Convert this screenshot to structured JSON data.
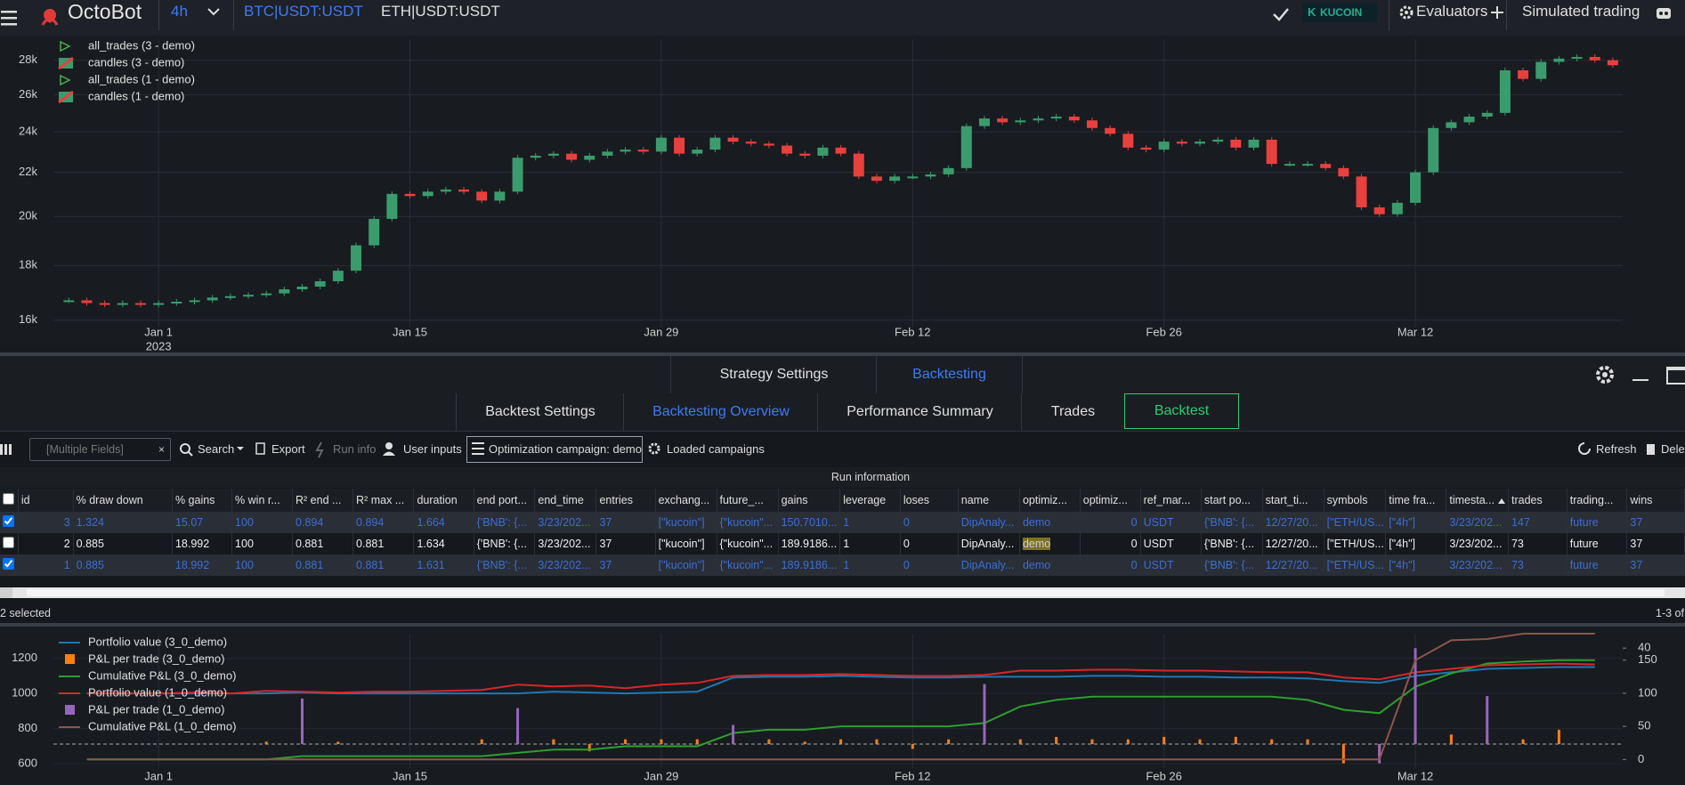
{
  "nav": {
    "logo": "OctoBot",
    "timeframe": "4h",
    "symbols": [
      "BTC|USDT:USDT",
      "ETH|USDT:USDT"
    ],
    "exchange": "KUCOIN",
    "evaluators": "Evaluators",
    "mode": "Simulated trading"
  },
  "panel": {
    "tabs_top": [
      "Strategy Settings",
      "Backtesting"
    ],
    "tabs": [
      "Backtest Settings",
      "Backtesting Overview",
      "Performance Summary",
      "Trades",
      "Backtest"
    ]
  },
  "toolbar": {
    "filter_placeholder": "[Multiple Fields]",
    "buttons": [
      "Search",
      "Export",
      "Run info",
      "User inputs",
      "Optimization campaign: demo",
      "Loaded campaigns"
    ],
    "refresh": "Refresh",
    "delete": "Dele"
  },
  "table": {
    "group_header": "Run information",
    "columns": [
      "id",
      "% draw down",
      "% gains",
      "% win r...",
      "R² end ...",
      "R² max ...",
      "duration",
      "end port...",
      "end_time",
      "entries",
      "exchang...",
      "future_...",
      "gains",
      "leverage",
      "loses",
      "name",
      "optimiz...",
      "optimiz...",
      "ref_mar...",
      "start po...",
      "start_ti...",
      "symbols",
      "time fra...",
      "timesta...",
      "trades",
      "trading...",
      "wins"
    ],
    "sort_column": 23,
    "rows": [
      [
        "3",
        "1.324",
        "15.07",
        "100",
        "0.894",
        "0.894",
        "1.664",
        "{'BNB': {...",
        "3/23/202...",
        "37",
        "[\"kucoin\"]",
        "{\"kucoin\"...",
        "150.7010...",
        "1",
        "0",
        "DipAnaly...",
        "demo",
        "0",
        "USDT",
        "{'BNB': {...",
        "12/27/20...",
        "[\"ETH/US...",
        "[\"4h\"]",
        "3/23/202...",
        "147",
        "future",
        "37"
      ],
      [
        "2",
        "0.885",
        "18.992",
        "100",
        "0.881",
        "0.881",
        "1.634",
        "{'BNB': {...",
        "3/23/202...",
        "37",
        "[\"kucoin\"]",
        "{\"kucoin\"...",
        "189.9186...",
        "1",
        "0",
        "DipAnaly...",
        "demo",
        "0",
        "USDT",
        "{'BNB': {...",
        "12/27/20...",
        "[\"ETH/US...",
        "[\"4h\"]",
        "3/23/202...",
        "73",
        "future",
        "37"
      ],
      [
        "1",
        "0.885",
        "18.992",
        "100",
        "0.881",
        "0.881",
        "1.631",
        "{'BNB': {...",
        "3/23/202...",
        "37",
        "[\"kucoin\"]",
        "{\"kucoin\"...",
        "189.9186...",
        "1",
        "0",
        "DipAnaly...",
        "demo",
        "0",
        "USDT",
        "{'BNB': {...",
        "12/27/20...",
        "[\"ETH/US...",
        "[\"4h\"]",
        "3/23/202...",
        "73",
        "future",
        "37"
      ]
    ],
    "selected": [
      true,
      false,
      true
    ],
    "highlight_cell": [
      1,
      16
    ]
  },
  "footer": {
    "selection": "2 selected",
    "range": "1-3 of"
  },
  "chart_data": [
    {
      "type": "candlestick",
      "log_scale": true,
      "grid": true,
      "legend": [
        {
          "name": "all_trades (3 - demo)",
          "marker": "triangle"
        },
        {
          "name": "candles (3 - demo)",
          "marker": "candle"
        },
        {
          "name": "all_trades (1 - demo)",
          "marker": "triangle"
        },
        {
          "name": "candles (1 - demo)",
          "marker": "candle"
        }
      ],
      "up_color": "#3a9c6c",
      "down_color": "#e8403d",
      "categories": [
        null,
        null,
        null,
        null,
        null,
        "Jan 1",
        null,
        null,
        null,
        null,
        null,
        null,
        null,
        null,
        null,
        null,
        null,
        null,
        null,
        "Jan 15",
        null,
        null,
        null,
        null,
        null,
        null,
        null,
        null,
        null,
        null,
        null,
        null,
        null,
        "Jan 29",
        null,
        null,
        null,
        null,
        null,
        null,
        null,
        null,
        null,
        null,
        null,
        null,
        null,
        "Feb 12",
        null,
        null,
        null,
        null,
        null,
        null,
        null,
        null,
        null,
        null,
        null,
        null,
        null,
        "Feb 26",
        null,
        null,
        null,
        null,
        null,
        null,
        null,
        null,
        null,
        null,
        null,
        null,
        null,
        "Mar 12",
        null,
        null,
        null,
        null,
        null,
        null,
        null,
        null,
        null,
        null,
        null
      ],
      "x_sublabel": "2023",
      "values": [
        16700,
        16600,
        16550,
        16600,
        16550,
        16600,
        16650,
        16700,
        16800,
        16850,
        16900,
        16950,
        17100,
        17200,
        17400,
        17800,
        18800,
        19900,
        21000,
        20900,
        21100,
        21200,
        21100,
        20700,
        21100,
        22700,
        22800,
        22900,
        22600,
        22800,
        23000,
        23100,
        23000,
        23700,
        22900,
        23100,
        23700,
        23500,
        23400,
        23300,
        22900,
        22800,
        23200,
        22900,
        21800,
        21600,
        21800,
        21800,
        21900,
        22200,
        24300,
        24700,
        24500,
        24600,
        24700,
        24800,
        24600,
        24200,
        23900,
        23200,
        23100,
        23500,
        23400,
        23500,
        23600,
        23200,
        23600,
        22400,
        22400,
        22400,
        22200,
        21800,
        20400,
        20100,
        20600,
        22000,
        24200,
        24500,
        24800,
        25000,
        27400,
        26900,
        27900,
        28100,
        28200,
        28000,
        27700
      ],
      "ylim": [
        15750,
        29300
      ],
      "yticks": [
        {
          "value": 16000,
          "label": "16k"
        },
        {
          "value": 18000,
          "label": "18k"
        },
        {
          "value": 20000,
          "label": "20k"
        },
        {
          "value": 22000,
          "label": "22k"
        },
        {
          "value": 24000,
          "label": "24k"
        },
        {
          "value": 26000,
          "label": "26k"
        },
        {
          "value": 28000,
          "label": "28k"
        }
      ]
    },
    {
      "type": "line",
      "grid": true,
      "categories": [
        null,
        null,
        "Jan 1",
        null,
        null,
        null,
        null,
        null,
        null,
        "Jan 15",
        null,
        null,
        null,
        null,
        null,
        null,
        "Jan 29",
        null,
        null,
        null,
        null,
        null,
        null,
        "Feb 12",
        null,
        null,
        null,
        null,
        null,
        null,
        "Feb 26",
        null,
        null,
        null,
        null,
        null,
        null,
        "Mar 12",
        null,
        null,
        null,
        null,
        null
      ],
      "ylim": [
        575,
        1340
      ],
      "yticks": [
        600,
        800,
        1000,
        1200
      ],
      "y2lim": [
        -13,
        190
      ],
      "y2ticks": [
        0,
        50,
        100,
        150
      ],
      "y3lim": [
        -10,
        46
      ],
      "y3ticks": [
        40
      ],
      "series": [
        {
          "name": "Portfolio value (3_0_demo)",
          "type": "line",
          "color": "#1f77b4",
          "values": [
            1000,
            1000,
            1000,
            1000,
            1000,
            1000,
            1005,
            1000,
            1000,
            1000,
            1000,
            1000,
            1000,
            1010,
            1005,
            1000,
            1005,
            1010,
            1090,
            1095,
            1095,
            1100,
            1095,
            1090,
            1090,
            1095,
            1095,
            1095,
            1100,
            1100,
            1095,
            1095,
            1090,
            1090,
            1085,
            1070,
            1060,
            1100,
            1120,
            1140,
            1145,
            1150,
            1150
          ]
        },
        {
          "name": "P&L per trade (3_0_demo)",
          "type": "bar",
          "axis": "y3",
          "color": "#ff7f0e",
          "values": [
            null,
            null,
            null,
            null,
            null,
            1,
            8,
            1,
            null,
            null,
            null,
            2,
            3,
            2,
            -3,
            2,
            2,
            2,
            1,
            2,
            1,
            2,
            2,
            -2,
            2,
            2,
            2,
            3,
            2,
            2,
            3,
            2,
            3,
            2,
            2,
            -8,
            -5,
            3,
            4,
            2,
            2,
            6,
            null
          ]
        },
        {
          "name": "Cumulative P&L (3_0_demo)",
          "type": "line",
          "axis": "y2",
          "color": "#2ca02c",
          "values": [
            0,
            0,
            0,
            0,
            0,
            0,
            5,
            5,
            5,
            5,
            5,
            5,
            10,
            15,
            15,
            20,
            20,
            20,
            40,
            45,
            45,
            50,
            50,
            50,
            50,
            55,
            80,
            90,
            95,
            95,
            95,
            95,
            95,
            95,
            90,
            75,
            70,
            110,
            130,
            145,
            148,
            150,
            150
          ]
        },
        {
          "name": "Portfolio value (1_0_demo)",
          "type": "line",
          "color": "#d62728",
          "values": [
            1000,
            1000,
            1000,
            1005,
            1000,
            1015,
            1010,
            1005,
            1010,
            1010,
            1015,
            1020,
            1050,
            1040,
            1045,
            1030,
            1050,
            1060,
            1100,
            1105,
            1105,
            1110,
            1105,
            1100,
            1100,
            1105,
            1130,
            1130,
            1135,
            1135,
            1130,
            1130,
            1125,
            1120,
            1120,
            1090,
            1080,
            1120,
            1140,
            1160,
            1165,
            1170,
            1165
          ]
        },
        {
          "name": "P&L per trade (1_0_demo)",
          "type": "bar",
          "axis": "y3",
          "color": "#9467bd",
          "values": [
            null,
            null,
            null,
            null,
            null,
            null,
            19,
            null,
            null,
            null,
            null,
            null,
            15,
            null,
            null,
            null,
            null,
            null,
            8,
            null,
            null,
            null,
            null,
            null,
            null,
            25,
            null,
            null,
            null,
            null,
            null,
            null,
            null,
            null,
            null,
            null,
            -8,
            40,
            null,
            20,
            null,
            null,
            null
          ]
        },
        {
          "name": "Cumulative P&L (1_0_demo)",
          "type": "line",
          "axis": "y2",
          "color": "#8c564b",
          "values": [
            0,
            0,
            0,
            0,
            0,
            0,
            0,
            0,
            0,
            0,
            0,
            0,
            0,
            0,
            0,
            0,
            0,
            0,
            0,
            0,
            0,
            0,
            0,
            0,
            0,
            0,
            0,
            0,
            0,
            0,
            0,
            0,
            0,
            0,
            0,
            0,
            0,
            150,
            180,
            182,
            190,
            190,
            190
          ]
        }
      ]
    }
  ]
}
